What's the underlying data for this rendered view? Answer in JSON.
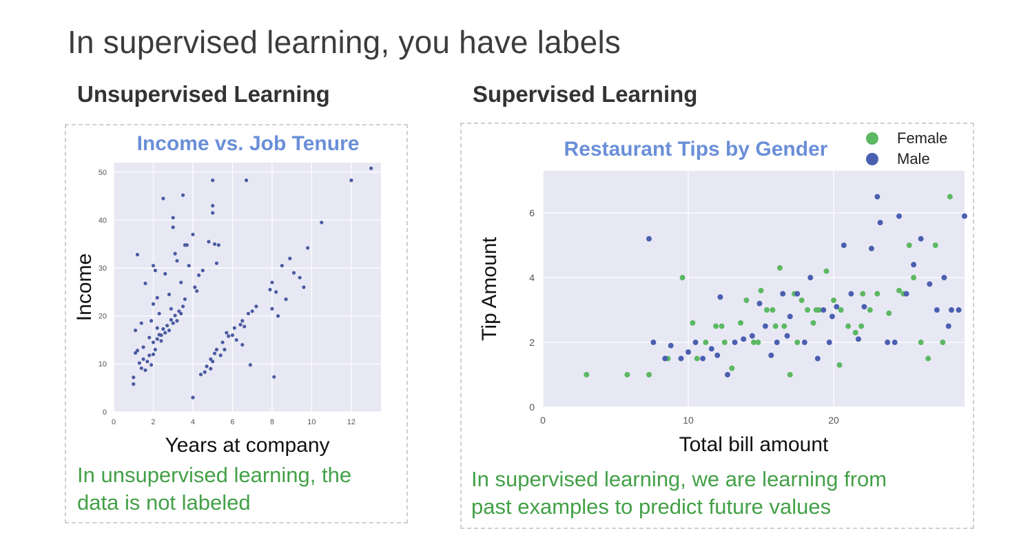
{
  "slide": {
    "title": "In supervised learning, you have labels",
    "left_heading": "Unsupervised Learning",
    "right_heading": "Supervised Learning",
    "left_caption_line1": "In unsupervised learning, the",
    "left_caption_line2": "data is not labeled",
    "right_caption_line1": "In supervised learning, we are learning from",
    "right_caption_line2": "past examples to predict future values"
  },
  "colors": {
    "plot_bg": "#e8e8f4",
    "grid": "#ffffff",
    "unlabeled_point": "#4a5aa0",
    "female": "#5cb862",
    "male": "#4a5fb0",
    "title": "#6a8fd8",
    "caption": "#43a047"
  },
  "chart_data": [
    {
      "type": "scatter",
      "title": "Income vs. Job Tenure",
      "xlabel": "Years at company",
      "ylabel": "Income",
      "xlim": [
        0,
        13.5
      ],
      "ylim": [
        0,
        52
      ],
      "xticks": [
        0,
        2,
        4,
        6,
        8,
        10,
        12
      ],
      "yticks": [
        0,
        10,
        20,
        30,
        40,
        50
      ],
      "grid": true,
      "points": [
        [
          1.0,
          5.8
        ],
        [
          1.0,
          7.2
        ],
        [
          1.1,
          12.3
        ],
        [
          1.2,
          12.8
        ],
        [
          1.3,
          10.2
        ],
        [
          1.4,
          9.1
        ],
        [
          1.5,
          11.0
        ],
        [
          1.5,
          13.5
        ],
        [
          1.6,
          8.7
        ],
        [
          1.7,
          10.5
        ],
        [
          1.8,
          11.8
        ],
        [
          1.9,
          9.8
        ],
        [
          2.0,
          12.0
        ],
        [
          2.0,
          14.5
        ],
        [
          2.1,
          13.0
        ],
        [
          2.2,
          15.2
        ],
        [
          2.3,
          16.1
        ],
        [
          2.4,
          14.8
        ],
        [
          2.5,
          17.3
        ],
        [
          2.6,
          16.5
        ],
        [
          2.7,
          18.0
        ],
        [
          2.8,
          17.0
        ],
        [
          2.9,
          19.2
        ],
        [
          3.0,
          18.5
        ],
        [
          3.1,
          20.1
        ],
        [
          3.2,
          19.0
        ],
        [
          3.3,
          21.0
        ],
        [
          3.4,
          20.5
        ],
        [
          3.5,
          22.0
        ],
        [
          3.6,
          23.5
        ],
        [
          1.1,
          17.0
        ],
        [
          1.2,
          32.8
        ],
        [
          1.4,
          18.5
        ],
        [
          1.6,
          26.8
        ],
        [
          1.8,
          15.5
        ],
        [
          2.0,
          22.5
        ],
        [
          2.0,
          30.5
        ],
        [
          2.1,
          29.5
        ],
        [
          2.2,
          23.8
        ],
        [
          2.3,
          20.5
        ],
        [
          2.5,
          44.5
        ],
        [
          2.6,
          28.8
        ],
        [
          2.8,
          24.5
        ],
        [
          3.0,
          38.5
        ],
        [
          3.0,
          40.5
        ],
        [
          3.1,
          33.0
        ],
        [
          3.2,
          31.5
        ],
        [
          3.4,
          27.0
        ],
        [
          3.5,
          45.2
        ],
        [
          3.6,
          34.8
        ],
        [
          3.7,
          34.8
        ],
        [
          4.1,
          26.0
        ],
        [
          4.2,
          25.2
        ],
        [
          4.3,
          28.5
        ],
        [
          4.0,
          37.0
        ],
        [
          3.8,
          30.5
        ],
        [
          2.4,
          16.0
        ],
        [
          2.9,
          21.5
        ],
        [
          1.9,
          19.0
        ],
        [
          2.2,
          17.5
        ],
        [
          4.0,
          3.0
        ],
        [
          4.4,
          7.8
        ],
        [
          4.6,
          8.3
        ],
        [
          4.7,
          9.5
        ],
        [
          4.9,
          11.0
        ],
        [
          5.0,
          10.5
        ],
        [
          5.1,
          12.2
        ],
        [
          5.2,
          13.0
        ],
        [
          5.4,
          11.8
        ],
        [
          5.5,
          14.5
        ],
        [
          5.6,
          13.0
        ],
        [
          5.8,
          15.8
        ],
        [
          6.0,
          16.0
        ],
        [
          6.1,
          17.5
        ],
        [
          6.2,
          15.0
        ],
        [
          6.4,
          18.2
        ],
        [
          6.5,
          19.0
        ],
        [
          6.6,
          17.8
        ],
        [
          6.8,
          20.5
        ],
        [
          7.0,
          21.0
        ],
        [
          7.2,
          22.0
        ],
        [
          4.8,
          35.5
        ],
        [
          5.0,
          41.5
        ],
        [
          5.0,
          43.0
        ],
        [
          5.1,
          35.0
        ],
        [
          5.2,
          31.0
        ],
        [
          5.3,
          34.8
        ],
        [
          5.0,
          48.3
        ],
        [
          4.5,
          29.5
        ],
        [
          6.5,
          14.0
        ],
        [
          6.9,
          9.8
        ],
        [
          8.1,
          7.3
        ],
        [
          6.7,
          48.3
        ],
        [
          7.9,
          25.5
        ],
        [
          8.0,
          27.0
        ],
        [
          8.2,
          25.0
        ],
        [
          8.5,
          30.5
        ],
        [
          8.7,
          23.5
        ],
        [
          8.9,
          32.0
        ],
        [
          9.1,
          29.0
        ],
        [
          9.4,
          28.0
        ],
        [
          9.6,
          26.0
        ],
        [
          9.8,
          34.2
        ],
        [
          10.5,
          39.5
        ],
        [
          12.0,
          48.3
        ],
        [
          13.0,
          50.8
        ],
        [
          8.0,
          21.5
        ],
        [
          8.3,
          20.0
        ],
        [
          5.7,
          16.5
        ],
        [
          4.9,
          9.0
        ]
      ]
    },
    {
      "type": "scatter",
      "title": "Restaurant Tips by Gender",
      "xlabel": "Total bill amount",
      "ylabel": "Tip Amount",
      "xlim": [
        0,
        29
      ],
      "ylim": [
        0,
        7.3
      ],
      "xticks": [
        0,
        10,
        20
      ],
      "yticks": [
        0,
        2,
        4,
        6
      ],
      "grid": true,
      "legend": {
        "position": "top-right"
      },
      "series": [
        {
          "name": "Female",
          "points": [
            [
              3.0,
              1.0
            ],
            [
              5.8,
              1.0
            ],
            [
              7.3,
              1.0
            ],
            [
              8.6,
              1.5
            ],
            [
              9.6,
              4.0
            ],
            [
              10.3,
              2.6
            ],
            [
              10.6,
              1.5
            ],
            [
              11.2,
              2.0
            ],
            [
              11.9,
              2.5
            ],
            [
              12.5,
              2.0
            ],
            [
              13.0,
              1.2
            ],
            [
              13.6,
              2.6
            ],
            [
              14.0,
              3.3
            ],
            [
              14.5,
              2.0
            ],
            [
              15.0,
              3.6
            ],
            [
              15.4,
              3.0
            ],
            [
              15.8,
              3.0
            ],
            [
              16.3,
              4.3
            ],
            [
              16.6,
              2.5
            ],
            [
              17.3,
              3.5
            ],
            [
              17.5,
              2.0
            ],
            [
              17.8,
              3.3
            ],
            [
              18.2,
              3.0
            ],
            [
              18.6,
              2.6
            ],
            [
              19.0,
              3.0
            ],
            [
              19.5,
              4.2
            ],
            [
              20.0,
              3.3
            ],
            [
              20.5,
              3.0
            ],
            [
              21.0,
              2.5
            ],
            [
              21.5,
              2.3
            ],
            [
              22.0,
              3.5
            ],
            [
              22.5,
              3.0
            ],
            [
              23.0,
              3.5
            ],
            [
              23.8,
              2.9
            ],
            [
              24.5,
              3.6
            ],
            [
              24.8,
              3.5
            ],
            [
              25.2,
              5.0
            ],
            [
              25.5,
              4.0
            ],
            [
              26.0,
              2.0
            ],
            [
              26.5,
              1.5
            ],
            [
              27.0,
              5.0
            ],
            [
              27.5,
              2.0
            ],
            [
              28.0,
              6.5
            ],
            [
              12.3,
              2.5
            ],
            [
              14.8,
              2.0
            ],
            [
              16.0,
              2.5
            ],
            [
              17.0,
              1.0
            ],
            [
              18.8,
              3.0
            ],
            [
              20.4,
              1.3
            ],
            [
              21.9,
              2.5
            ]
          ]
        },
        {
          "name": "Male",
          "points": [
            [
              7.3,
              5.2
            ],
            [
              7.6,
              2.0
            ],
            [
              8.4,
              1.5
            ],
            [
              8.8,
              1.9
            ],
            [
              9.5,
              1.5
            ],
            [
              10.0,
              1.7
            ],
            [
              10.5,
              2.0
            ],
            [
              11.0,
              1.5
            ],
            [
              11.6,
              1.8
            ],
            [
              12.2,
              3.4
            ],
            [
              12.7,
              1.0
            ],
            [
              13.2,
              2.0
            ],
            [
              13.8,
              2.1
            ],
            [
              14.4,
              2.2
            ],
            [
              14.9,
              3.2
            ],
            [
              15.3,
              2.5
            ],
            [
              15.7,
              1.6
            ],
            [
              16.1,
              2.0
            ],
            [
              16.5,
              3.5
            ],
            [
              17.0,
              2.8
            ],
            [
              17.5,
              3.5
            ],
            [
              18.0,
              2.0
            ],
            [
              18.4,
              4.0
            ],
            [
              18.9,
              1.5
            ],
            [
              19.3,
              3.0
            ],
            [
              19.7,
              2.0
            ],
            [
              20.2,
              3.1
            ],
            [
              20.7,
              5.0
            ],
            [
              21.2,
              3.5
            ],
            [
              21.7,
              2.1
            ],
            [
              22.1,
              3.1
            ],
            [
              22.6,
              4.9
            ],
            [
              23.0,
              6.5
            ],
            [
              23.2,
              5.7
            ],
            [
              23.7,
              2.0
            ],
            [
              24.2,
              2.0
            ],
            [
              24.5,
              5.9
            ],
            [
              25.0,
              3.5
            ],
            [
              25.5,
              4.4
            ],
            [
              26.0,
              5.2
            ],
            [
              26.6,
              3.8
            ],
            [
              27.1,
              3.0
            ],
            [
              27.6,
              4.0
            ],
            [
              28.1,
              3.0
            ],
            [
              28.6,
              3.0
            ],
            [
              29.0,
              5.9
            ],
            [
              27.9,
              2.5
            ],
            [
              12.0,
              1.6
            ],
            [
              16.8,
              2.2
            ],
            [
              19.9,
              2.8
            ]
          ]
        }
      ]
    }
  ]
}
